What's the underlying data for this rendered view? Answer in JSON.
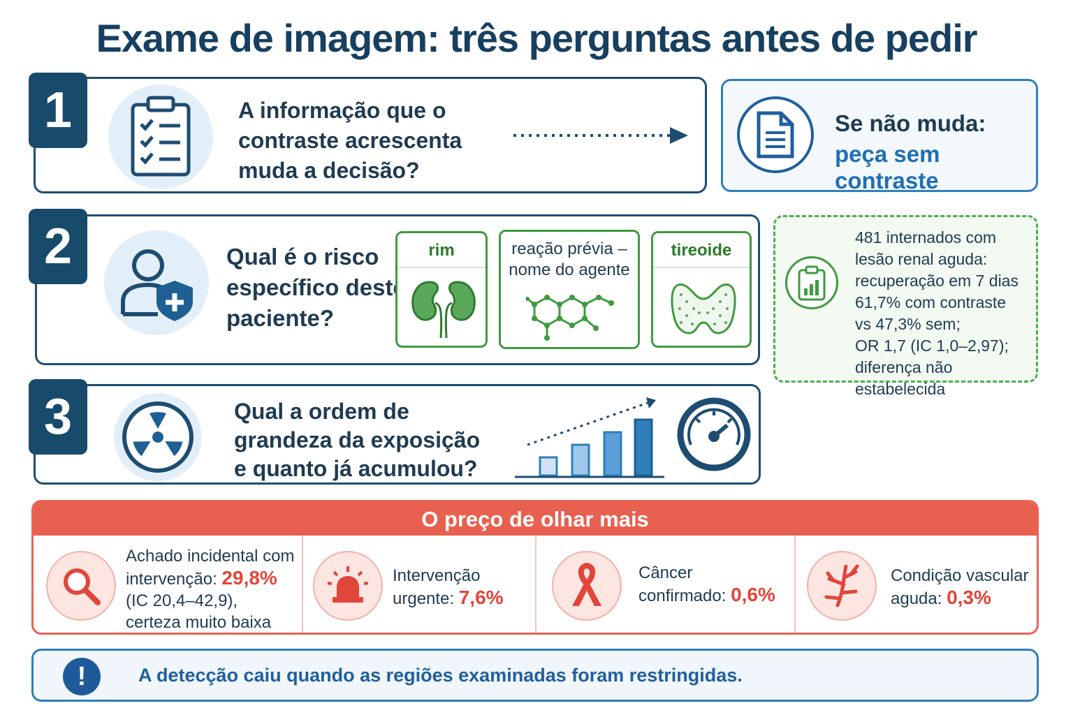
{
  "title": "Exame de imagem: três perguntas antes de pedir",
  "q1": {
    "number": "1",
    "text_lines": [
      "A informação que o",
      "contraste acrescenta",
      "muda a decisão?"
    ],
    "icon": "clipboard-checklist-icon",
    "side_line1": "Se não muda:",
    "side_line2": "peça sem contraste",
    "side_icon": "document-icon"
  },
  "q2": {
    "number": "2",
    "text_lines": [
      "Qual é o risco",
      "específico deste",
      "paciente?"
    ],
    "icon": "patient-shield-icon",
    "cards": [
      {
        "label": "rim",
        "icon": "kidney-icon"
      },
      {
        "label": "reação prévia –\nnome do agente",
        "icon": "molecule-icon"
      },
      {
        "label": "tireoide",
        "icon": "thyroid-icon"
      }
    ],
    "note": "481 internados com\nlesão renal aguda:\nrecuperação em 7 dias\n61,7% com contraste\nvs 47,3% sem;\nOR 1,7 (IC 1,0–2,97);\ndiferença não estabelecida",
    "note_icon": "clipboard-chart-icon"
  },
  "q3": {
    "number": "3",
    "text_lines": [
      "Qual a ordem de",
      "grandeza da exposição",
      "e quanto já acumulou?"
    ],
    "icon": "radiation-icon",
    "chart_icon": "rising-bars-icon",
    "gauge_icon": "gauge-icon"
  },
  "price": {
    "header": "O preço de olhar mais",
    "items": [
      {
        "pre": "Achado incidental com\nintervenção: ",
        "value": "29,8%",
        "post": "\n(IC 20,4–42,9),\ncerteza muito baixa",
        "icon": "magnifier-icon"
      },
      {
        "pre": "Intervenção\nurgente: ",
        "value": "7,6%",
        "post": "",
        "icon": "siren-icon"
      },
      {
        "pre": "Câncer\nconfirmado: ",
        "value": "0,6%",
        "post": "",
        "icon": "ribbon-icon"
      },
      {
        "pre": "Condição vascular\naguda: ",
        "value": "0,3%",
        "post": "",
        "icon": "vessel-icon"
      }
    ]
  },
  "alert": {
    "symbol": "!",
    "text": "A detecção caiu quando as regiões examinadas foram restringidas."
  },
  "colors": {
    "navy": "#174a6b",
    "blue": "#1f6fb5",
    "green": "#3f9a3f",
    "red": "#e8604f"
  }
}
